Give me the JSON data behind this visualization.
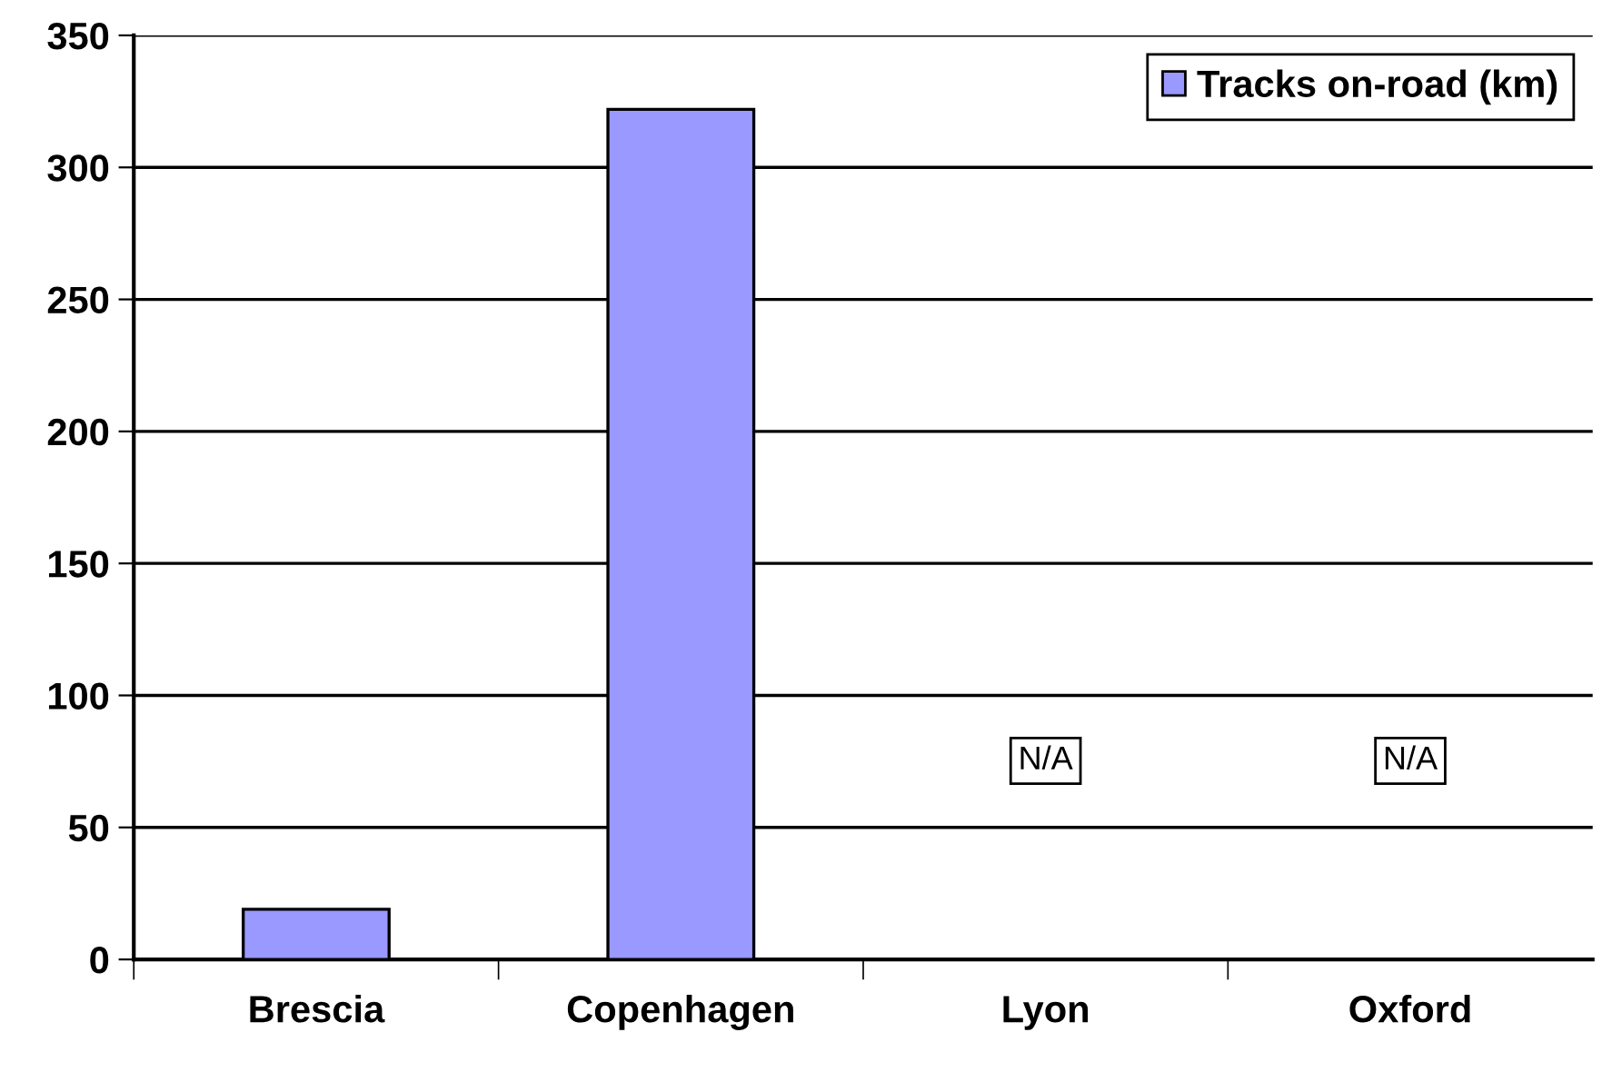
{
  "chart_data": {
    "type": "bar",
    "categories": [
      "Brescia",
      "Copenhagen",
      "Lyon",
      "Oxford"
    ],
    "series": [
      {
        "name": "Tracks on-road (km)",
        "color": "#9999ff",
        "values": [
          19,
          322,
          null,
          null
        ],
        "value_labels": [
          null,
          null,
          "N/A",
          "N/A"
        ]
      }
    ],
    "ylim": [
      0,
      350
    ],
    "yticks": [
      0,
      50,
      100,
      150,
      200,
      250,
      300,
      350
    ],
    "grid": "y",
    "legend": "top right"
  }
}
